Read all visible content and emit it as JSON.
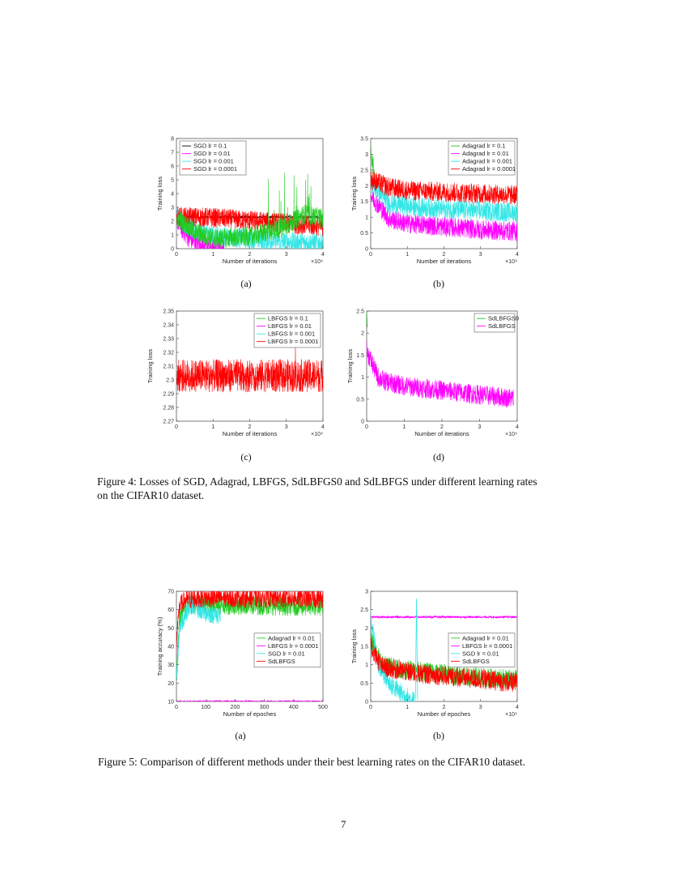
{
  "figure4": {
    "caption": "Figure 4: Losses of SGD, Adagrad, LBFGS, SdLBFGS0 and SdLBFGS under different learning rates on the CIFAR10 dataset.",
    "caption_line1": "Figure 4: Losses of SGD, Adagrad, LBFGS, SdLBFGS0 and SdLBFGS under different learning rates",
    "caption_line2": "on the CIFAR10 dataset.",
    "sublabels": [
      "(a)",
      "(b)",
      "(c)",
      "(d)"
    ]
  },
  "figure5": {
    "caption": "Figure 5: Comparison of different methods under their best learning rates on the CIFAR10 dataset.",
    "sublabels": [
      "(a)",
      "(b)"
    ]
  },
  "page_number": "7",
  "colors": {
    "green": "#22cc22",
    "magenta": "#ff00ff",
    "cyan": "#33e6e6",
    "red": "#ff0000",
    "black": "#000000"
  },
  "chart_data": [
    {
      "id": "fig4a",
      "type": "line",
      "subfigure": "(a)",
      "xlabel": "Number of iterations",
      "ylabel": "Training loss",
      "x_multiplier": "×10⁴",
      "xlim": [
        0,
        4
      ],
      "ylim": [
        0,
        8
      ],
      "xticks": [
        0,
        1,
        2,
        3,
        4
      ],
      "yticks": [
        0,
        1,
        2,
        3,
        4,
        5,
        6,
        7,
        8
      ],
      "legend_position": "top-left",
      "series": [
        {
          "name": "SGD lr = 0.1",
          "color": "#000000",
          "x": [
            0,
            4
          ],
          "y": [
            2.3,
            2.3
          ]
        },
        {
          "name": "SGD lr = 0.01",
          "color": "#ff00ff",
          "x": [
            0,
            0.1,
            0.3,
            0.5,
            0.8,
            1.0,
            1.2,
            1.3
          ],
          "y": [
            2.3,
            1.6,
            0.9,
            0.5,
            0.3,
            0.15,
            0.05,
            0.0
          ]
        },
        {
          "name": "SGD lr = 0.001",
          "color": "#33e6e6",
          "x": [
            0,
            0.5,
            1,
            1.5,
            2,
            3,
            4
          ],
          "y": [
            2.3,
            1.3,
            1.0,
            0.8,
            0.7,
            0.5,
            0.4
          ]
        },
        {
          "name": "SGD lr = 0.0001",
          "color": "#ff0000",
          "x": [
            0,
            0.5,
            1,
            2,
            3,
            4
          ],
          "y": [
            2.3,
            2.3,
            2.25,
            2.05,
            1.85,
            1.6
          ]
        },
        {
          "name": "",
          "color": "#22cc22",
          "x": [
            0,
            0.5,
            1,
            2,
            3,
            3.5,
            4
          ],
          "y": [
            2.3,
            1.2,
            0.7,
            0.9,
            1.6,
            2.5,
            2.2
          ]
        }
      ]
    },
    {
      "id": "fig4b",
      "type": "line",
      "subfigure": "(b)",
      "xlabel": "Number of iterations",
      "ylabel": "Training loss",
      "x_multiplier": "×10⁴",
      "xlim": [
        0,
        4
      ],
      "ylim": [
        0,
        3.5
      ],
      "xticks": [
        0,
        1,
        2,
        3,
        4
      ],
      "yticks": [
        0,
        0.5,
        1,
        1.5,
        2,
        2.5,
        3,
        3.5
      ],
      "legend_position": "top-right",
      "series": [
        {
          "name": "Adagrad lr = 0.1",
          "color": "#22cc22",
          "x": [
            0,
            0.1
          ],
          "y": [
            3.2,
            2.3
          ]
        },
        {
          "name": "Adagrad lr = 0.01",
          "color": "#ff00ff",
          "x": [
            0,
            0.5,
            1,
            2,
            3,
            4
          ],
          "y": [
            1.7,
            0.95,
            0.8,
            0.7,
            0.6,
            0.55
          ]
        },
        {
          "name": "Adagrad lr = 0.001",
          "color": "#33e6e6",
          "x": [
            0,
            0.5,
            1,
            2,
            3,
            4
          ],
          "y": [
            2.1,
            1.45,
            1.35,
            1.25,
            1.2,
            1.15
          ]
        },
        {
          "name": "Adagrad lr = 0.0001",
          "color": "#ff0000",
          "x": [
            0,
            0.5,
            1,
            2,
            3,
            4
          ],
          "y": [
            2.2,
            1.95,
            1.85,
            1.8,
            1.75,
            1.7
          ]
        }
      ]
    },
    {
      "id": "fig4c",
      "type": "line",
      "subfigure": "(c)",
      "xlabel": "Number of iterations",
      "ylabel": "Training loss",
      "x_multiplier": "×10⁴",
      "xlim": [
        0,
        4
      ],
      "ylim": [
        2.27,
        2.35
      ],
      "xticks": [
        0,
        1,
        2,
        3,
        4
      ],
      "yticks": [
        2.27,
        2.28,
        2.29,
        2.3,
        2.31,
        2.32,
        2.33,
        2.34,
        2.35
      ],
      "legend_position": "top-right",
      "series": [
        {
          "name": "LBFGS lr = 0.1",
          "color": "#22cc22",
          "x": [],
          "y": []
        },
        {
          "name": "LBFGS lr = 0.01",
          "color": "#ff00ff",
          "x": [],
          "y": []
        },
        {
          "name": "LBFGS lr = 0.001",
          "color": "#33e6e6",
          "x": [],
          "y": []
        },
        {
          "name": "LBFGS lr = 0.0001",
          "color": "#ff0000",
          "x": [
            0,
            1,
            2,
            3,
            4
          ],
          "y": [
            2.303,
            2.303,
            2.303,
            2.303,
            2.303
          ],
          "noise": 0.012
        }
      ]
    },
    {
      "id": "fig4d",
      "type": "line",
      "subfigure": "(d)",
      "xlabel": "Number of iterations",
      "ylabel": "Training loss",
      "x_multiplier": "×10⁴",
      "xlim": [
        0,
        4
      ],
      "ylim": [
        0,
        2.5
      ],
      "xticks": [
        0,
        1,
        2,
        3,
        4
      ],
      "yticks": [
        0,
        0.5,
        1,
        1.5,
        2,
        2.5
      ],
      "legend_position": "top-right",
      "series": [
        {
          "name": "SdLBFGS0",
          "color": "#22cc22",
          "x": [
            0,
            0.02
          ],
          "y": [
            2.35,
            2.3
          ]
        },
        {
          "name": "SdLBFGS",
          "color": "#ff00ff",
          "x": [
            0,
            0.3,
            0.5,
            1,
            2,
            3,
            3.9
          ],
          "y": [
            1.6,
            1.0,
            0.9,
            0.8,
            0.7,
            0.6,
            0.52
          ]
        }
      ]
    },
    {
      "id": "fig5a",
      "type": "line",
      "subfigure": "(a)",
      "xlabel": "Number of epoches",
      "ylabel": "Training accuracy (%)",
      "x_multiplier": "",
      "xlim": [
        0,
        500
      ],
      "ylim": [
        10,
        70
      ],
      "xticks": [
        0,
        100,
        200,
        300,
        400,
        500
      ],
      "yticks": [
        10,
        20,
        30,
        40,
        50,
        60,
        70
      ],
      "legend_position": "center-right",
      "series": [
        {
          "name": "Adagrad lr = 0.01",
          "color": "#22cc22",
          "x": [
            0,
            10,
            30,
            60,
            100,
            200,
            300,
            400,
            500
          ],
          "y": [
            25,
            55,
            61,
            63,
            62.5,
            62.5,
            62.3,
            62,
            61.8
          ]
        },
        {
          "name": "LBFGS lr = 0.0001",
          "color": "#ff00ff",
          "x": [
            0,
            500
          ],
          "y": [
            10,
            10
          ]
        },
        {
          "name": "SGD lr = 0.01",
          "color": "#33e6e6",
          "x": [
            0,
            10,
            30,
            50,
            80,
            110,
            150
          ],
          "y": [
            20,
            50,
            58,
            63,
            60,
            58,
            57
          ]
        },
        {
          "name": "SdLBFGS",
          "color": "#ff0000",
          "x": [
            0,
            10,
            30,
            60,
            100,
            200,
            300,
            400,
            500
          ],
          "y": [
            40,
            62,
            65,
            66,
            66.5,
            66.5,
            66.3,
            66.2,
            66
          ]
        }
      ]
    },
    {
      "id": "fig5b",
      "type": "line",
      "subfigure": "(b)",
      "xlabel": "Number of epoches",
      "ylabel": "Training loss",
      "x_multiplier": "×10⁴",
      "xlim": [
        0,
        4
      ],
      "ylim": [
        0,
        3
      ],
      "xticks": [
        0,
        1,
        2,
        3,
        4
      ],
      "yticks": [
        0,
        0.5,
        1,
        1.5,
        2,
        2.5,
        3
      ],
      "legend_position": "center-right",
      "series": [
        {
          "name": "Adagrad lr = 0.01",
          "color": "#22cc22",
          "x": [
            0,
            0.3,
            1,
            2,
            3,
            4
          ],
          "y": [
            1.7,
            1.0,
            0.85,
            0.75,
            0.65,
            0.6
          ]
        },
        {
          "name": "LBFGS lr = 0.0001",
          "color": "#ff00ff",
          "x": [
            0,
            4
          ],
          "y": [
            2.3,
            2.3
          ]
        },
        {
          "name": "SGD lr = 0.01",
          "color": "#33e6e6",
          "x": [
            0,
            0.2,
            0.5,
            0.8,
            1.1,
            1.2
          ],
          "y": [
            2.3,
            1.0,
            0.5,
            0.25,
            0.05,
            0.0
          ]
        },
        {
          "name": "SdLBFGS",
          "color": "#ff0000",
          "x": [
            0,
            0.3,
            1,
            2,
            3,
            4
          ],
          "y": [
            1.5,
            0.95,
            0.8,
            0.7,
            0.6,
            0.5
          ]
        }
      ]
    }
  ]
}
